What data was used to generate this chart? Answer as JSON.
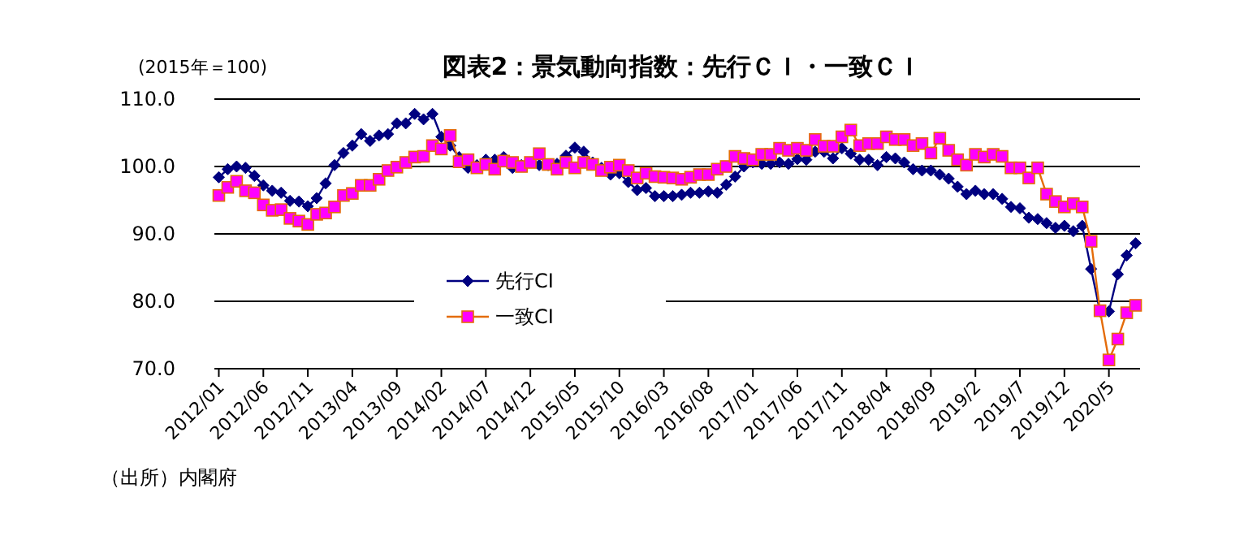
{
  "chart_data": {
    "type": "line",
    "title": "図表2：景気動向指数：先行ＣＩ・一致ＣＩ",
    "annotations": [
      "(2015年＝100)",
      "（出所）内閣府"
    ],
    "categories": [
      "2012/01",
      null,
      null,
      null,
      null,
      "2012/06",
      null,
      null,
      null,
      null,
      "2012/11",
      null,
      null,
      null,
      null,
      "2013/04",
      null,
      null,
      null,
      null,
      "2013/09",
      null,
      null,
      null,
      null,
      "2014/02",
      null,
      null,
      null,
      null,
      "2014/07",
      null,
      null,
      null,
      null,
      "2014/12",
      null,
      null,
      null,
      null,
      "2015/05",
      null,
      null,
      null,
      null,
      "2015/10",
      null,
      null,
      null,
      null,
      "2016/03",
      null,
      null,
      null,
      null,
      "2016/08",
      null,
      null,
      null,
      null,
      "2017/01",
      null,
      null,
      null,
      null,
      "2017/06",
      null,
      null,
      null,
      null,
      "2017/11",
      null,
      null,
      null,
      null,
      "2018/04",
      null,
      null,
      null,
      null,
      "2018/09",
      null,
      null,
      null,
      null,
      "2019/2",
      null,
      null,
      null,
      null,
      "2019/7",
      null,
      null,
      null,
      null,
      "2019/12",
      null,
      null,
      null,
      null,
      "2020/5",
      null,
      null,
      null
    ],
    "series": [
      {
        "name": "先行CI",
        "color": "#000080",
        "marker": "diamond",
        "values": [
          98.4,
          99.6,
          100.0,
          99.8,
          98.6,
          97.2,
          96.4,
          96.1,
          94.9,
          94.8,
          94.1,
          95.3,
          97.5,
          100.2,
          102.0,
          103.1,
          104.8,
          103.8,
          104.6,
          104.8,
          106.4,
          106.4,
          107.8,
          107.0,
          107.8,
          104.4,
          103.1,
          101.4,
          99.8,
          100.2,
          101.0,
          101.0,
          101.4,
          99.8,
          100.2,
          100.6,
          100.2,
          100.2,
          100.4,
          101.6,
          102.8,
          102.2,
          100.6,
          99.8,
          98.8,
          99.0,
          97.7,
          96.5,
          96.8,
          95.6,
          95.6,
          95.6,
          95.8,
          96.1,
          96.1,
          96.3,
          96.1,
          97.3,
          98.5,
          100.0,
          100.6,
          100.4,
          100.4,
          100.6,
          100.4,
          101.1,
          101.0,
          102.2,
          102.2,
          101.2,
          102.7,
          101.9,
          101.0,
          101.0,
          100.2,
          101.4,
          101.2,
          100.6,
          99.6,
          99.4,
          99.4,
          98.8,
          98.2,
          97.0,
          95.9,
          96.4,
          95.9,
          95.9,
          95.2,
          94.0,
          93.8,
          92.4,
          92.2,
          91.6,
          90.9,
          91.2,
          90.4,
          91.2,
          84.8,
          78.5,
          78.5,
          84.0,
          86.8,
          88.6
        ]
      },
      {
        "name": "一致CI",
        "color": "#ff00ff",
        "marker": "square",
        "values": [
          95.7,
          96.9,
          97.8,
          96.4,
          96.1,
          94.3,
          93.5,
          93.6,
          92.3,
          91.9,
          91.4,
          92.9,
          93.1,
          94.0,
          95.7,
          96.0,
          97.2,
          97.2,
          98.1,
          99.4,
          99.9,
          100.6,
          101.4,
          101.5,
          103.1,
          102.6,
          104.6,
          100.7,
          101.0,
          99.8,
          100.3,
          99.6,
          100.8,
          100.6,
          100.0,
          100.6,
          101.9,
          100.3,
          99.6,
          100.6,
          99.8,
          100.6,
          100.3,
          99.4,
          99.9,
          100.2,
          99.4,
          98.3,
          99.0,
          98.5,
          98.4,
          98.3,
          98.1,
          98.4,
          98.8,
          98.8,
          99.6,
          100.0,
          101.5,
          101.2,
          101.0,
          101.8,
          101.8,
          102.7,
          102.4,
          102.7,
          102.4,
          104.0,
          103.0,
          103.0,
          104.4,
          105.4,
          103.1,
          103.4,
          103.4,
          104.4,
          104.0,
          104.0,
          103.1,
          103.4,
          102.0,
          104.2,
          102.4,
          101.0,
          100.2,
          101.8,
          101.4,
          101.8,
          101.5,
          99.8,
          99.8,
          98.3,
          99.8,
          95.9,
          94.8,
          94.0,
          94.5,
          94.0,
          88.9,
          78.6,
          71.3,
          74.4,
          78.3,
          79.4
        ]
      }
    ],
    "ylim": [
      70,
      110
    ],
    "yticks": [
      {
        "value": 70,
        "label": "70.0"
      },
      {
        "value": 80,
        "label": "80.0"
      },
      {
        "value": 90,
        "label": "90.0"
      },
      {
        "value": 100,
        "label": "100.0"
      },
      {
        "value": 110,
        "label": "110.0"
      }
    ],
    "grid": "y",
    "legend": "bottom left"
  }
}
